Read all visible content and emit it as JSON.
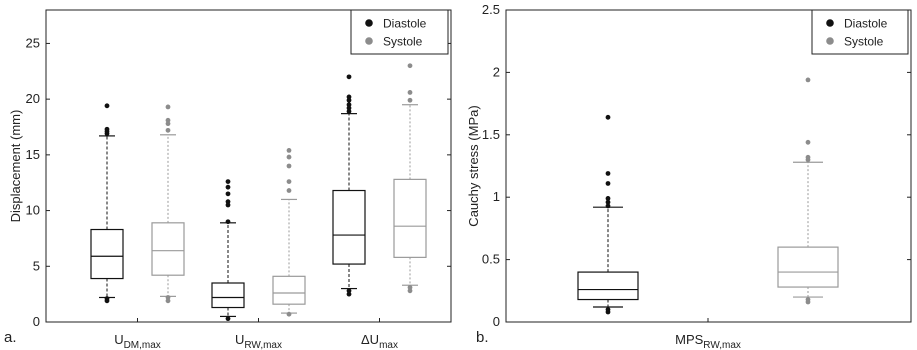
{
  "chart_data": [
    {
      "type": "box",
      "panel_label": "a.",
      "ylabel": "Displacement (mm)",
      "ylim": [
        0,
        28
      ],
      "yticks": [
        0,
        5,
        10,
        15,
        20,
        25
      ],
      "grid": false,
      "legend": {
        "placement": "top-right",
        "entries": [
          {
            "name": "Diastole",
            "color": "#111111"
          },
          {
            "name": "Systole",
            "color": "#8c8c8c"
          }
        ]
      },
      "categories": [
        {
          "base": "U",
          "sub": "DM,max"
        },
        {
          "base": "U",
          "sub": "RW,max"
        },
        {
          "base": "ΔU",
          "sub": "max"
        }
      ],
      "series": [
        {
          "name": "Diastole",
          "color": "#111111",
          "boxes": [
            {
              "whisker_low": 2.2,
              "q1": 3.9,
              "median": 5.9,
              "q3": 8.3,
              "whisker_high": 16.7,
              "outliers": [
                1.9,
                2.1,
                16.9,
                17.1,
                17.3,
                19.4
              ]
            },
            {
              "whisker_low": 0.5,
              "q1": 1.3,
              "median": 2.2,
              "q3": 3.5,
              "whisker_high": 8.9,
              "outliers": [
                0.3,
                9.0,
                10.5,
                10.8,
                11.5,
                12.1,
                12.6
              ]
            },
            {
              "whisker_low": 3.0,
              "q1": 5.2,
              "median": 7.8,
              "q3": 11.8,
              "whisker_high": 18.7,
              "outliers": [
                2.5,
                2.8,
                18.9,
                19.2,
                19.5,
                19.9,
                20.2,
                22.0
              ]
            }
          ]
        },
        {
          "name": "Systole",
          "color": "#8c8c8c",
          "boxes": [
            {
              "whisker_low": 2.3,
              "q1": 4.2,
              "median": 6.4,
              "q3": 8.9,
              "whisker_high": 16.8,
              "outliers": [
                1.9,
                2.2,
                17.2,
                17.8,
                18.1,
                19.3
              ]
            },
            {
              "whisker_low": 0.8,
              "q1": 1.6,
              "median": 2.6,
              "q3": 4.1,
              "whisker_high": 11.0,
              "outliers": [
                0.7,
                11.8,
                12.6,
                14.0,
                14.8,
                15.4
              ]
            },
            {
              "whisker_low": 3.3,
              "q1": 5.8,
              "median": 8.6,
              "q3": 12.8,
              "whisker_high": 19.5,
              "outliers": [
                2.8,
                3.1,
                19.9,
                20.6,
                23.0
              ]
            }
          ]
        }
      ]
    },
    {
      "type": "box",
      "panel_label": "b.",
      "ylabel": "Cauchy stress (MPa)",
      "ylim": [
        0,
        2.5
      ],
      "yticks": [
        "0",
        "0.5",
        "1",
        "1.5",
        "2",
        "2.5"
      ],
      "grid": false,
      "legend": {
        "placement": "top-right",
        "entries": [
          {
            "name": "Diastole",
            "color": "#111111"
          },
          {
            "name": "Systole",
            "color": "#8c8c8c"
          }
        ]
      },
      "categories": [
        {
          "base": "MPS",
          "sub": "RW,max"
        }
      ],
      "series": [
        {
          "name": "Diastole",
          "color": "#111111",
          "boxes": [
            {
              "whisker_low": 0.12,
              "q1": 0.18,
              "median": 0.26,
              "q3": 0.4,
              "whisker_high": 0.92,
              "outliers": [
                0.08,
                0.1,
                0.93,
                0.96,
                0.99,
                1.11,
                1.19,
                1.64
              ]
            }
          ]
        },
        {
          "name": "Systole",
          "color": "#8c8c8c",
          "boxes": [
            {
              "whisker_low": 0.2,
              "q1": 0.28,
              "median": 0.4,
              "q3": 0.6,
              "whisker_high": 1.28,
              "outliers": [
                0.16,
                0.18,
                1.3,
                1.32,
                1.44,
                1.94
              ]
            }
          ]
        }
      ]
    }
  ]
}
